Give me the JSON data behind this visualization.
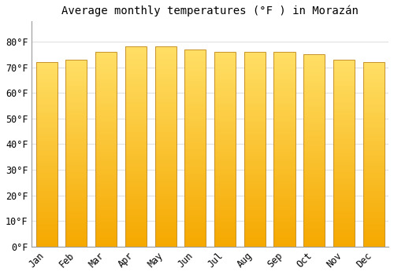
{
  "months": [
    "Jan",
    "Feb",
    "Mar",
    "Apr",
    "May",
    "Jun",
    "Jul",
    "Aug",
    "Sep",
    "Oct",
    "Nov",
    "Dec"
  ],
  "temperatures": [
    72,
    73,
    76,
    78,
    78,
    77,
    76,
    76,
    76,
    75,
    73,
    72
  ],
  "title": "Average monthly temperatures (°F ) in Morazán",
  "ylim": [
    0,
    88
  ],
  "yticks": [
    0,
    10,
    20,
    30,
    40,
    50,
    60,
    70,
    80
  ],
  "ytick_labels": [
    "0°F",
    "10°F",
    "20°F",
    "30°F",
    "40°F",
    "50°F",
    "60°F",
    "70°F",
    "80°F"
  ],
  "bar_color_top": "#FFD966",
  "bar_color_bottom": "#F5A800",
  "bar_edge_color": "#C8922A",
  "background_color": "#FFFFFF",
  "grid_color": "#E0E0E0",
  "title_fontsize": 10,
  "tick_fontsize": 8.5
}
